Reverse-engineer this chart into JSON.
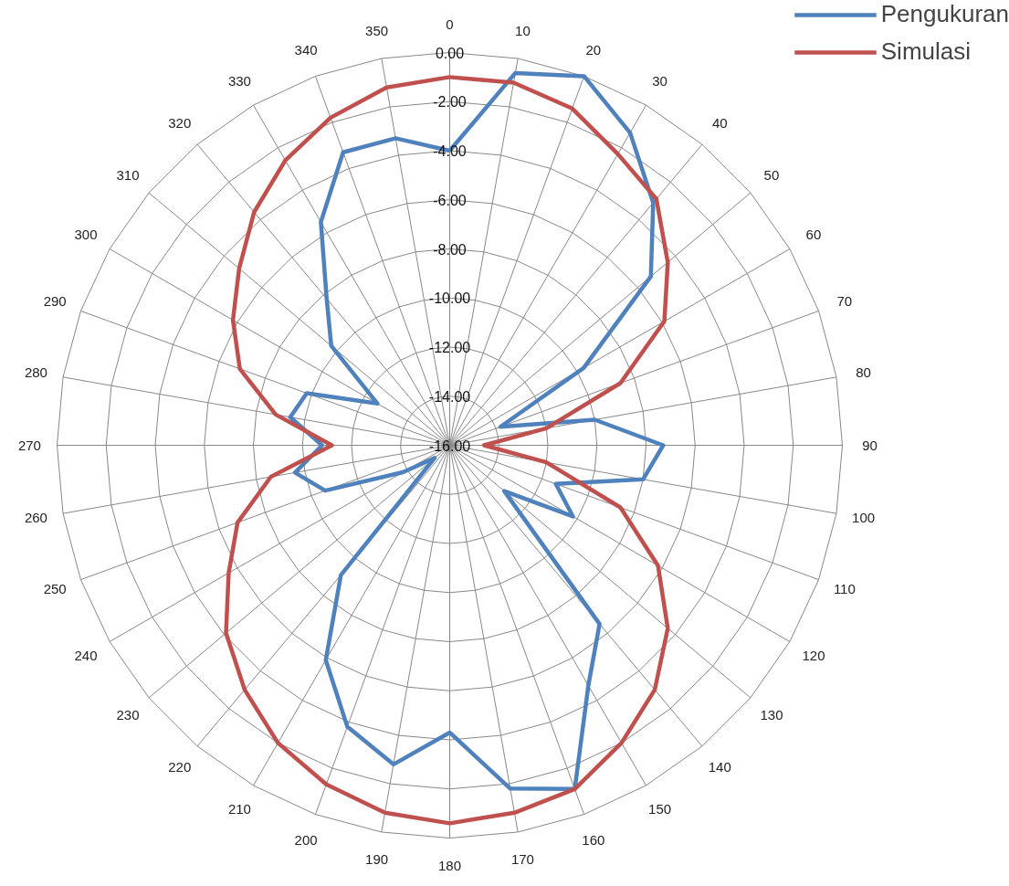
{
  "chart_data": {
    "type": "radar",
    "categories": [
      "0",
      "10",
      "20",
      "30",
      "40",
      "50",
      "60",
      "70",
      "80",
      "90",
      "100",
      "110",
      "120",
      "130",
      "140",
      "150",
      "160",
      "170",
      "180",
      "190",
      "200",
      "210",
      "220",
      "230",
      "240",
      "250",
      "260",
      "270",
      "280",
      "290",
      "300",
      "310",
      "320",
      "330",
      "340",
      "350"
    ],
    "series": [
      {
        "name": "Pengukuran",
        "color": "#4f81bd",
        "values": [
          -4.0,
          -0.6,
          0.0,
          -1.3,
          -3.1,
          -5.3,
          -9.7,
          -13.8,
          -10.0,
          -7.3,
          -8.0,
          -11.4,
          -10.2,
          -13.1,
          -6.5,
          -4.7,
          -1.1,
          -1.8,
          -4.3,
          -2.8,
          -3.8,
          -5.9,
          -9.1,
          -15.2,
          -13.8,
          -10.6,
          -9.6,
          -10.8,
          -9.4,
          -9.8,
          -12.6,
          -9.7,
          -8.2,
          -5.5,
          -3.3,
          -3.3
        ]
      },
      {
        "name": "Simulasi",
        "color": "#c0504d",
        "values": [
          -1.0,
          -1.0,
          -1.4,
          -2.3,
          -2.9,
          -4.4,
          -5.9,
          -8.6,
          -12.0,
          -14.6,
          -12.0,
          -8.6,
          -6.2,
          -4.4,
          -3.0,
          -2.0,
          -1.1,
          -0.8,
          -0.6,
          -0.8,
          -1.3,
          -2.0,
          -3.0,
          -4.1,
          -5.6,
          -6.8,
          -8.6,
          -11.2,
          -8.8,
          -6.9,
          -5.8,
          -4.8,
          -3.6,
          -2.6,
          -1.8,
          -1.2
        ]
      }
    ],
    "ylim": [
      -16,
      0
    ],
    "yticks": [
      {
        "value": -16,
        "label": "-16.00"
      },
      {
        "value": -14,
        "label": "-14.00"
      },
      {
        "value": -12,
        "label": "-12.00"
      },
      {
        "value": -10,
        "label": "-10.00"
      },
      {
        "value": -8,
        "label": "-8.00"
      },
      {
        "value": -6,
        "label": "-6.00"
      },
      {
        "value": -4,
        "label": "-4.00"
      },
      {
        "value": -2,
        "label": "-2.00"
      },
      {
        "value": 0,
        "label": "0.00"
      }
    ],
    "grid": true,
    "legend": "top right",
    "line_style": "solid",
    "marker": "none"
  }
}
